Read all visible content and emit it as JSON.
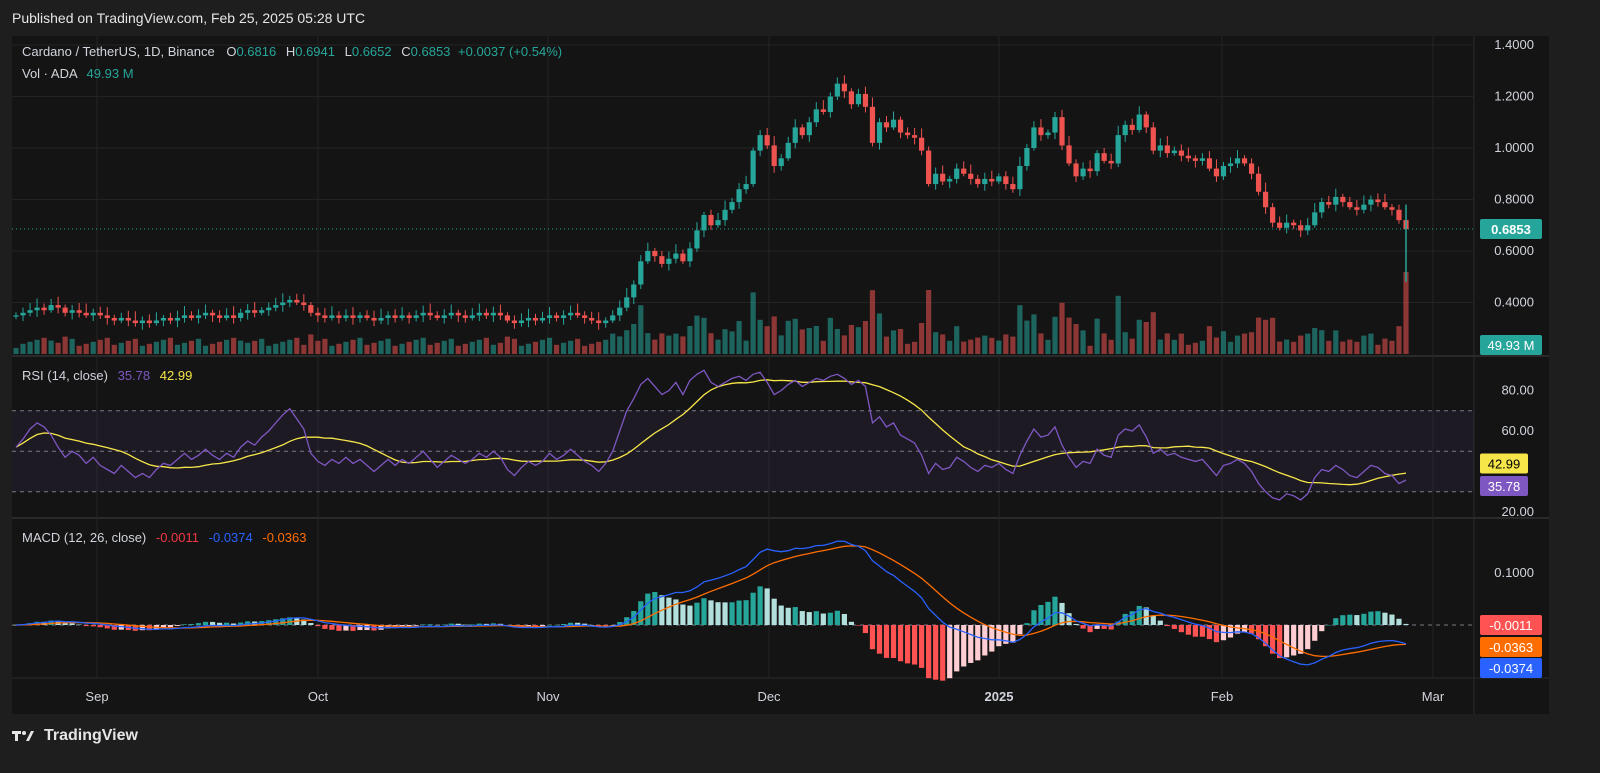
{
  "header": {
    "published": "Published on TradingView.com, Feb 25, 2025 05:28 UTC"
  },
  "symbol": {
    "name": "Cardano / TetherUS, 1D, Binance",
    "o_label": "O",
    "o": "0.6816",
    "h_label": "H",
    "h": "0.6941",
    "l_label": "L",
    "l": "0.6652",
    "c_label": "C",
    "c": "0.6853",
    "change": "+0.0037 (+0.54%)"
  },
  "volume": {
    "label": "Vol · ADA",
    "value": "49.93 M",
    "badge": "49.93 M"
  },
  "price_axis": {
    "ticks": [
      "1.4000",
      "1.2000",
      "1.0000",
      "0.8000",
      "0.6000",
      "0.4000"
    ],
    "last_price": "0.6853"
  },
  "rsi": {
    "label": "RSI (14, close)",
    "rsi_value": "35.78",
    "ma_value": "42.99",
    "ticks": [
      "80.00",
      "60.00",
      "20.00"
    ]
  },
  "macd": {
    "label": "MACD (12, 26, close)",
    "hist": "-0.0011",
    "macd": "-0.0374",
    "signal": "-0.0363",
    "ticks": [
      "0.1000"
    ]
  },
  "time_axis": {
    "labels": [
      "Sep",
      "Oct",
      "Nov",
      "Dec",
      "2025",
      "Feb",
      "Mar"
    ]
  },
  "footer": {
    "brand": "TradingView"
  },
  "colors": {
    "up": "#26a69a",
    "down": "#ef5350",
    "rsi": "#7e57c2",
    "ma": "#f7e64a",
    "macd": "#2962ff",
    "signal": "#ff6d00"
  },
  "chart_data": {
    "type": "candlestick",
    "title": "Cardano / TetherUS, 1D, Binance",
    "price_ylim": [
      0.36,
      1.42
    ],
    "rsi_ylim": [
      18,
      93
    ],
    "months": [
      "Sep",
      "Oct",
      "Nov",
      "Dec",
      "2025",
      "Feb",
      "Mar"
    ],
    "closes": [
      0.35,
      0.36,
      0.37,
      0.38,
      0.37,
      0.39,
      0.38,
      0.36,
      0.37,
      0.36,
      0.35,
      0.36,
      0.35,
      0.34,
      0.33,
      0.34,
      0.33,
      0.32,
      0.33,
      0.32,
      0.33,
      0.34,
      0.33,
      0.34,
      0.35,
      0.34,
      0.35,
      0.36,
      0.35,
      0.34,
      0.35,
      0.34,
      0.36,
      0.37,
      0.36,
      0.37,
      0.38,
      0.39,
      0.4,
      0.41,
      0.4,
      0.39,
      0.36,
      0.35,
      0.34,
      0.35,
      0.34,
      0.35,
      0.34,
      0.35,
      0.34,
      0.33,
      0.34,
      0.35,
      0.34,
      0.35,
      0.34,
      0.35,
      0.36,
      0.35,
      0.34,
      0.35,
      0.36,
      0.35,
      0.34,
      0.35,
      0.36,
      0.35,
      0.36,
      0.35,
      0.33,
      0.32,
      0.33,
      0.34,
      0.33,
      0.34,
      0.35,
      0.34,
      0.35,
      0.36,
      0.35,
      0.34,
      0.33,
      0.32,
      0.33,
      0.35,
      0.38,
      0.42,
      0.47,
      0.56,
      0.6,
      0.58,
      0.55,
      0.57,
      0.59,
      0.56,
      0.61,
      0.68,
      0.74,
      0.7,
      0.72,
      0.76,
      0.79,
      0.84,
      0.86,
      0.99,
      1.05,
      1.01,
      0.93,
      0.96,
      1.02,
      1.08,
      1.05,
      1.1,
      1.15,
      1.14,
      1.2,
      1.25,
      1.22,
      1.17,
      1.21,
      1.16,
      1.02,
      1.1,
      1.08,
      1.11,
      1.06,
      1.05,
      1.04,
      0.99,
      0.86,
      0.9,
      0.87,
      0.88,
      0.92,
      0.9,
      0.88,
      0.86,
      0.88,
      0.87,
      0.89,
      0.86,
      0.84,
      0.93,
      1.0,
      1.08,
      1.05,
      1.06,
      1.12,
      1.01,
      0.94,
      0.89,
      0.92,
      0.91,
      0.98,
      0.95,
      0.94,
      1.05,
      1.09,
      1.07,
      1.13,
      1.08,
      0.99,
      1.01,
      0.98,
      0.99,
      0.97,
      0.96,
      0.95,
      0.96,
      0.92,
      0.89,
      0.93,
      0.94,
      0.96,
      0.94,
      0.9,
      0.83,
      0.77,
      0.71,
      0.69,
      0.71,
      0.7,
      0.68,
      0.7,
      0.75,
      0.79,
      0.78,
      0.81,
      0.79,
      0.77,
      0.76,
      0.78,
      0.8,
      0.79,
      0.77,
      0.76,
      0.72,
      0.685
    ],
    "rsi": [
      52,
      56,
      61,
      64,
      62,
      58,
      52,
      47,
      50,
      48,
      44,
      47,
      43,
      41,
      39,
      43,
      40,
      37,
      39,
      37,
      41,
      44,
      43,
      46,
      49,
      46,
      48,
      51,
      48,
      46,
      49,
      47,
      52,
      55,
      53,
      57,
      60,
      64,
      68,
      71,
      66,
      61,
      49,
      45,
      43,
      46,
      44,
      47,
      44,
      46,
      43,
      40,
      43,
      46,
      43,
      46,
      44,
      47,
      50,
      46,
      42,
      45,
      48,
      46,
      44,
      46,
      49,
      47,
      50,
      47,
      41,
      38,
      42,
      45,
      43,
      45,
      49,
      46,
      48,
      51,
      48,
      45,
      43,
      40,
      44,
      50,
      60,
      70,
      76,
      83,
      86,
      82,
      78,
      80,
      84,
      78,
      85,
      88,
      90,
      84,
      82,
      84,
      86,
      87,
      85,
      88,
      89,
      84,
      78,
      80,
      83,
      85,
      82,
      84,
      86,
      85,
      87,
      88,
      86,
      83,
      85,
      82,
      64,
      67,
      62,
      64,
      58,
      56,
      54,
      48,
      39,
      44,
      41,
      42,
      47,
      45,
      42,
      40,
      43,
      42,
      44,
      41,
      39,
      48,
      55,
      61,
      57,
      58,
      62,
      53,
      47,
      42,
      45,
      44,
      51,
      48,
      47,
      58,
      61,
      60,
      63,
      57,
      49,
      51,
      48,
      49,
      47,
      46,
      45,
      46,
      42,
      38,
      43,
      44,
      46,
      44,
      40,
      34,
      30,
      27,
      26,
      29,
      28,
      26,
      29,
      37,
      41,
      40,
      43,
      41,
      38,
      37,
      40,
      43,
      42,
      39,
      38,
      34,
      35.78
    ]
  }
}
